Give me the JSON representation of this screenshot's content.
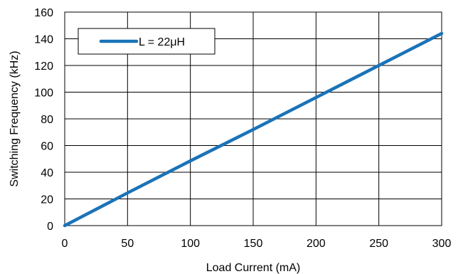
{
  "chart_data": {
    "type": "line",
    "title": "",
    "xlabel": "Load Current (mA)",
    "ylabel": "Switching Frequency (kHz)",
    "xlim": [
      0,
      300
    ],
    "ylim": [
      0,
      160
    ],
    "xticks": [
      0,
      50,
      100,
      150,
      200,
      250,
      300
    ],
    "yticks": [
      0,
      20,
      40,
      60,
      80,
      100,
      120,
      140,
      160
    ],
    "grid": true,
    "legend_position": "top-left",
    "series": [
      {
        "name": "L = 22μH",
        "color": "#1a73b8",
        "x": [
          0,
          50,
          100,
          150,
          200,
          250,
          300
        ],
        "y": [
          0,
          24.5,
          48.5,
          72,
          96,
          120,
          144
        ]
      }
    ]
  }
}
